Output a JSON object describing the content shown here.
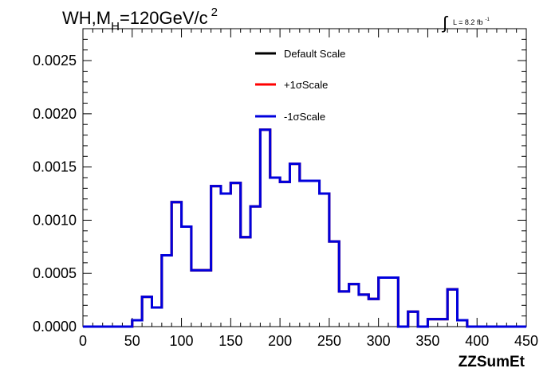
{
  "chart_data": {
    "type": "line",
    "title_parts": {
      "main": "WH,M",
      "sub": "H",
      "rest": "=120GeV/c",
      "sup": "2"
    },
    "lumi": {
      "integral_sign": "∫",
      "text": "L = 8.2 fb",
      "sup": "-1"
    },
    "xlabel": "ZZSumEt",
    "ylabel": "",
    "xlim": [
      0,
      450
    ],
    "ylim": [
      0,
      0.0028
    ],
    "x_ticks": [
      0,
      50,
      100,
      150,
      200,
      250,
      300,
      350,
      400,
      450
    ],
    "x_tick_labels": [
      "0",
      "50",
      "100",
      "150",
      "200",
      "250",
      "300",
      "350",
      "400",
      "450"
    ],
    "y_ticks": [
      0,
      0.0005,
      0.001,
      0.0015,
      0.002,
      0.0025
    ],
    "y_tick_labels": [
      "0.0000",
      "0.0005",
      "0.0010",
      "0.0015",
      "0.0020",
      "0.0025"
    ],
    "bin_edges": [
      0,
      10,
      20,
      30,
      40,
      50,
      60,
      70,
      80,
      90,
      100,
      110,
      120,
      130,
      140,
      150,
      160,
      170,
      180,
      190,
      200,
      210,
      220,
      230,
      240,
      250,
      260,
      270,
      280,
      290,
      300,
      310,
      320,
      330,
      340,
      350,
      360,
      370,
      380,
      390,
      400,
      410,
      420,
      430,
      440,
      450
    ],
    "legend": {
      "placement": "top-center",
      "entries": [
        "Default Scale",
        "+1σScale",
        "-1σScale"
      ]
    },
    "series": [
      {
        "name": "Default Scale",
        "color": "#000000",
        "values": [
          0,
          0,
          0,
          0,
          0,
          6e-05,
          0.00028,
          0.00018,
          0.00067,
          0.00117,
          0.00094,
          0.00053,
          0.00053,
          0.00132,
          0.00125,
          0.00135,
          0.00084,
          0.00113,
          0.00185,
          0.0014,
          0.00136,
          0.00153,
          0.00137,
          0.00137,
          0.00125,
          0.0008,
          0.00033,
          0.0004,
          0.0003,
          0.00026,
          0.00046,
          0.00046,
          0,
          0.00014,
          0,
          7e-05,
          7e-05,
          0.00035,
          6e-05,
          0,
          0,
          0,
          0,
          0,
          0,
          0
        ]
      },
      {
        "name": "+1σScale",
        "color": "#ff0000",
        "values": [
          0,
          0,
          0,
          0,
          0,
          6e-05,
          0.00028,
          0.00018,
          0.00067,
          0.00117,
          0.00094,
          0.00053,
          0.00053,
          0.00132,
          0.00125,
          0.00135,
          0.00084,
          0.00113,
          0.00185,
          0.0014,
          0.00136,
          0.00153,
          0.00137,
          0.00137,
          0.00125,
          0.0008,
          0.00033,
          0.0004,
          0.0003,
          0.00026,
          0.00046,
          0.00046,
          0,
          0.00014,
          0,
          7e-05,
          7e-05,
          0.00035,
          6e-05,
          0,
          0,
          0,
          0,
          0,
          0,
          0
        ]
      },
      {
        "name": "-1σScale",
        "color": "#0000dd",
        "values": [
          0,
          0,
          0,
          0,
          0,
          6e-05,
          0.00028,
          0.00018,
          0.00067,
          0.00117,
          0.00094,
          0.00053,
          0.00053,
          0.00132,
          0.00125,
          0.00135,
          0.00084,
          0.00113,
          0.00185,
          0.0014,
          0.00136,
          0.00153,
          0.00137,
          0.00137,
          0.00125,
          0.0008,
          0.00033,
          0.0004,
          0.0003,
          0.00026,
          0.00046,
          0.00046,
          0,
          0.00014,
          0,
          7e-05,
          7e-05,
          0.00035,
          6e-05,
          0,
          0,
          0,
          0,
          0,
          0,
          0
        ]
      }
    ],
    "grid": false
  }
}
